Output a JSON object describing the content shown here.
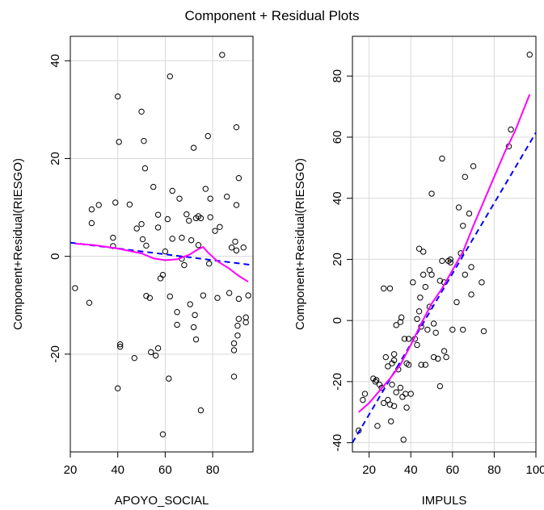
{
  "title": "Component + Residual Plots",
  "colors": {
    "grid": "#d9d9d9",
    "points": "#000000",
    "linear_fit": "#0000ff",
    "smooth_fit": "#ff00ff"
  },
  "chart_data": [
    {
      "type": "scatter",
      "xlabel": "APOYO_SOCIAL",
      "ylabel": "Component+Residual(RIESGO)",
      "xlim": [
        20,
        97
      ],
      "ylim": [
        -40,
        45
      ],
      "xticks": [
        20,
        40,
        60,
        80
      ],
      "yticks": [
        -20,
        0,
        20,
        40
      ],
      "grid": true,
      "points": [
        {
          "x": 22,
          "y": -6.5
        },
        {
          "x": 28,
          "y": -9.5
        },
        {
          "x": 29,
          "y": 6.8
        },
        {
          "x": 29,
          "y": 9.6
        },
        {
          "x": 32,
          "y": 10.5
        },
        {
          "x": 38,
          "y": 2.1
        },
        {
          "x": 38,
          "y": 3.8
        },
        {
          "x": 39,
          "y": 11
        },
        {
          "x": 40,
          "y": 32.7
        },
        {
          "x": 40,
          "y": -27
        },
        {
          "x": 40.5,
          "y": 23.4
        },
        {
          "x": 41,
          "y": -18
        },
        {
          "x": 41,
          "y": -18.5
        },
        {
          "x": 45,
          "y": 10.6
        },
        {
          "x": 47,
          "y": -20.8
        },
        {
          "x": 48,
          "y": 5.7
        },
        {
          "x": 50,
          "y": 29.6
        },
        {
          "x": 50,
          "y": 6.6
        },
        {
          "x": 50.5,
          "y": 3.5
        },
        {
          "x": 51,
          "y": 23.6
        },
        {
          "x": 51.5,
          "y": 18
        },
        {
          "x": 52,
          "y": 2.2
        },
        {
          "x": 52,
          "y": -8.1
        },
        {
          "x": 53.5,
          "y": -8.5
        },
        {
          "x": 54,
          "y": -19.6
        },
        {
          "x": 55,
          "y": 14.2
        },
        {
          "x": 56,
          "y": -20.3
        },
        {
          "x": 57,
          "y": 8.5
        },
        {
          "x": 57,
          "y": 5.9
        },
        {
          "x": 57,
          "y": -18.8
        },
        {
          "x": 58,
          "y": -4.5
        },
        {
          "x": 59,
          "y": -3.8
        },
        {
          "x": 59,
          "y": -36.4
        },
        {
          "x": 60,
          "y": 1
        },
        {
          "x": 61,
          "y": 7.6
        },
        {
          "x": 61.5,
          "y": -25
        },
        {
          "x": 62,
          "y": 36.8
        },
        {
          "x": 62,
          "y": -8.2
        },
        {
          "x": 63,
          "y": 13.4
        },
        {
          "x": 63,
          "y": 3.6
        },
        {
          "x": 65,
          "y": -11.4
        },
        {
          "x": 65,
          "y": -14
        },
        {
          "x": 66,
          "y": 11.8
        },
        {
          "x": 67,
          "y": 3.8
        },
        {
          "x": 67,
          "y": -0.5
        },
        {
          "x": 68,
          "y": -1.8
        },
        {
          "x": 69,
          "y": 8.6
        },
        {
          "x": 70,
          "y": 7.3
        },
        {
          "x": 70.5,
          "y": -9.8
        },
        {
          "x": 71,
          "y": 3.3
        },
        {
          "x": 72,
          "y": 22.2
        },
        {
          "x": 72,
          "y": -14.5
        },
        {
          "x": 72.5,
          "y": -12
        },
        {
          "x": 73,
          "y": 7.8
        },
        {
          "x": 73,
          "y": -17
        },
        {
          "x": 74,
          "y": 8.2
        },
        {
          "x": 74,
          "y": 2.3
        },
        {
          "x": 75,
          "y": 7.8
        },
        {
          "x": 75,
          "y": -31.5
        },
        {
          "x": 76,
          "y": -8
        },
        {
          "x": 77,
          "y": 13.8
        },
        {
          "x": 78,
          "y": 24.6
        },
        {
          "x": 78.5,
          "y": -1.5
        },
        {
          "x": 79,
          "y": 11.8
        },
        {
          "x": 79,
          "y": 8
        },
        {
          "x": 81,
          "y": 5.2
        },
        {
          "x": 82,
          "y": -8.5
        },
        {
          "x": 83,
          "y": 6
        },
        {
          "x": 84,
          "y": 41.2
        },
        {
          "x": 86,
          "y": 12.2
        },
        {
          "x": 87,
          "y": -7.5
        },
        {
          "x": 88,
          "y": 1.8
        },
        {
          "x": 89,
          "y": -24.6
        },
        {
          "x": 89,
          "y": -19.2
        },
        {
          "x": 89,
          "y": -17.8
        },
        {
          "x": 89.5,
          "y": 3
        },
        {
          "x": 90,
          "y": 26.4
        },
        {
          "x": 90,
          "y": 10.5
        },
        {
          "x": 90,
          "y": 1.2
        },
        {
          "x": 90.5,
          "y": -16.2
        },
        {
          "x": 90.5,
          "y": -14.2
        },
        {
          "x": 91,
          "y": 16
        },
        {
          "x": 91,
          "y": -12.8
        },
        {
          "x": 91,
          "y": -8.7
        },
        {
          "x": 93,
          "y": 1.8
        },
        {
          "x": 94,
          "y": -12.5
        },
        {
          "x": 94,
          "y": -13.5
        },
        {
          "x": 95,
          "y": -8
        }
      ],
      "linear_fit": [
        {
          "x": 20,
          "y": 2.8
        },
        {
          "x": 97,
          "y": -1.8
        }
      ],
      "smooth_fit": [
        {
          "x": 22,
          "y": 2.6
        },
        {
          "x": 30,
          "y": 2.3
        },
        {
          "x": 40,
          "y": 1.6
        },
        {
          "x": 50,
          "y": 0.6
        },
        {
          "x": 55,
          "y": -0.4
        },
        {
          "x": 60,
          "y": -0.8
        },
        {
          "x": 65,
          "y": -0.6
        },
        {
          "x": 70,
          "y": 0.3
        },
        {
          "x": 74,
          "y": 1.5
        },
        {
          "x": 76,
          "y": 1.9
        },
        {
          "x": 78,
          "y": 0.8
        },
        {
          "x": 82,
          "y": -1.0
        },
        {
          "x": 87,
          "y": -2.5
        },
        {
          "x": 91,
          "y": -4.0
        },
        {
          "x": 95,
          "y": -5.2
        }
      ]
    },
    {
      "type": "scatter",
      "xlabel": "IMPULS",
      "ylabel": "Component+Residual(RIESGO)",
      "xlim": [
        12,
        100
      ],
      "ylim": [
        -43,
        93
      ],
      "xticks": [
        20,
        40,
        60,
        80,
        100
      ],
      "yticks": [
        -40,
        -20,
        0,
        20,
        40,
        60,
        80
      ],
      "grid": true,
      "points": [
        {
          "x": 15,
          "y": -36
        },
        {
          "x": 17,
          "y": -26
        },
        {
          "x": 18,
          "y": -24
        },
        {
          "x": 22,
          "y": -19
        },
        {
          "x": 23,
          "y": -20
        },
        {
          "x": 23.5,
          "y": -19.5
        },
        {
          "x": 24,
          "y": -34.5
        },
        {
          "x": 25,
          "y": -21
        },
        {
          "x": 26,
          "y": -22
        },
        {
          "x": 27,
          "y": -27
        },
        {
          "x": 27,
          "y": 10.5
        },
        {
          "x": 28,
          "y": -12
        },
        {
          "x": 29,
          "y": -26
        },
        {
          "x": 29,
          "y": -15
        },
        {
          "x": 30,
          "y": -27.5
        },
        {
          "x": 30,
          "y": 10.5
        },
        {
          "x": 30.5,
          "y": -33
        },
        {
          "x": 31,
          "y": -14
        },
        {
          "x": 31,
          "y": -21
        },
        {
          "x": 32,
          "y": -13
        },
        {
          "x": 32,
          "y": -11
        },
        {
          "x": 32,
          "y": -28
        },
        {
          "x": 33,
          "y": -23.5
        },
        {
          "x": 33,
          "y": -1.5
        },
        {
          "x": 34,
          "y": -16
        },
        {
          "x": 35,
          "y": -22
        },
        {
          "x": 35,
          "y": -0.5
        },
        {
          "x": 35.5,
          "y": 1
        },
        {
          "x": 36,
          "y": -25
        },
        {
          "x": 36.5,
          "y": -39
        },
        {
          "x": 37,
          "y": -6
        },
        {
          "x": 37.5,
          "y": -24
        },
        {
          "x": 38,
          "y": -14
        },
        {
          "x": 38,
          "y": -28.5
        },
        {
          "x": 39,
          "y": -14.5
        },
        {
          "x": 39,
          "y": -6
        },
        {
          "x": 40,
          "y": -24
        },
        {
          "x": 41,
          "y": 12.5
        },
        {
          "x": 42,
          "y": -6
        },
        {
          "x": 43,
          "y": -8
        },
        {
          "x": 43,
          "y": 0.5
        },
        {
          "x": 44,
          "y": 23.5
        },
        {
          "x": 44,
          "y": 3
        },
        {
          "x": 44.5,
          "y": 7.5
        },
        {
          "x": 45,
          "y": -14.5
        },
        {
          "x": 45,
          "y": -2
        },
        {
          "x": 46,
          "y": 22.5
        },
        {
          "x": 46,
          "y": 15
        },
        {
          "x": 47,
          "y": 11
        },
        {
          "x": 47,
          "y": -14.5
        },
        {
          "x": 48,
          "y": -3
        },
        {
          "x": 49,
          "y": 4.5
        },
        {
          "x": 49,
          "y": 16.5
        },
        {
          "x": 50,
          "y": 41.5
        },
        {
          "x": 50,
          "y": 15
        },
        {
          "x": 51,
          "y": -1
        },
        {
          "x": 51,
          "y": -12
        },
        {
          "x": 52,
          "y": -4
        },
        {
          "x": 53,
          "y": -12.5
        },
        {
          "x": 54,
          "y": -21.5
        },
        {
          "x": 54,
          "y": 13
        },
        {
          "x": 55,
          "y": 53
        },
        {
          "x": 55,
          "y": 19.5
        },
        {
          "x": 56,
          "y": -10
        },
        {
          "x": 56,
          "y": 12.5
        },
        {
          "x": 57,
          "y": -12
        },
        {
          "x": 58,
          "y": 19.5
        },
        {
          "x": 59,
          "y": 20
        },
        {
          "x": 59,
          "y": 19
        },
        {
          "x": 60,
          "y": -3
        },
        {
          "x": 62,
          "y": 6
        },
        {
          "x": 63,
          "y": 37
        },
        {
          "x": 64,
          "y": 22
        },
        {
          "x": 65,
          "y": 31
        },
        {
          "x": 65,
          "y": -3
        },
        {
          "x": 66,
          "y": 47
        },
        {
          "x": 66,
          "y": 15
        },
        {
          "x": 68,
          "y": 35
        },
        {
          "x": 69,
          "y": 17.5
        },
        {
          "x": 69,
          "y": 8.5
        },
        {
          "x": 70,
          "y": 50.5
        },
        {
          "x": 74,
          "y": 12.5
        },
        {
          "x": 75,
          "y": -3.5
        },
        {
          "x": 87,
          "y": 57
        },
        {
          "x": 88,
          "y": 62.5
        },
        {
          "x": 97,
          "y": 87
        }
      ],
      "linear_fit": [
        {
          "x": 12,
          "y": -40
        },
        {
          "x": 100,
          "y": 61.5
        }
      ],
      "smooth_fit": [
        {
          "x": 15,
          "y": -30
        },
        {
          "x": 20,
          "y": -27
        },
        {
          "x": 25,
          "y": -23
        },
        {
          "x": 30,
          "y": -19
        },
        {
          "x": 35,
          "y": -14.5
        },
        {
          "x": 40,
          "y": -8
        },
        {
          "x": 45,
          "y": -1
        },
        {
          "x": 50,
          "y": 5.5
        },
        {
          "x": 55,
          "y": 10.5
        },
        {
          "x": 60,
          "y": 16.5
        },
        {
          "x": 65,
          "y": 22.5
        },
        {
          "x": 70,
          "y": 31
        },
        {
          "x": 75,
          "y": 39
        },
        {
          "x": 80,
          "y": 47
        },
        {
          "x": 85,
          "y": 55
        },
        {
          "x": 90,
          "y": 62
        },
        {
          "x": 97,
          "y": 74
        }
      ]
    }
  ]
}
